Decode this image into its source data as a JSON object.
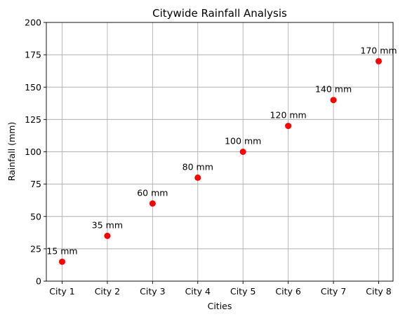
{
  "chart_data": {
    "type": "scatter",
    "title": "Citywide Rainfall Analysis",
    "xlabel": "Cities",
    "ylabel": "Rainfall (mm)",
    "categories": [
      "City 1",
      "City 2",
      "City 3",
      "City 4",
      "City 5",
      "City 6",
      "City 7",
      "City 8"
    ],
    "values": [
      15,
      35,
      60,
      80,
      100,
      120,
      140,
      170
    ],
    "data_labels": [
      "15 mm",
      "35 mm",
      "60 mm",
      "80 mm",
      "100 mm",
      "120 mm",
      "140 mm",
      "170 mm"
    ],
    "ylim": [
      0,
      200
    ],
    "yticks": [
      0,
      25,
      50,
      75,
      100,
      125,
      150,
      175,
      200
    ],
    "ytick_labels": [
      "0",
      "25",
      "50",
      "75",
      "100",
      "125",
      "150",
      "175",
      "200"
    ],
    "grid": true,
    "marker_color": "#ff0000"
  }
}
